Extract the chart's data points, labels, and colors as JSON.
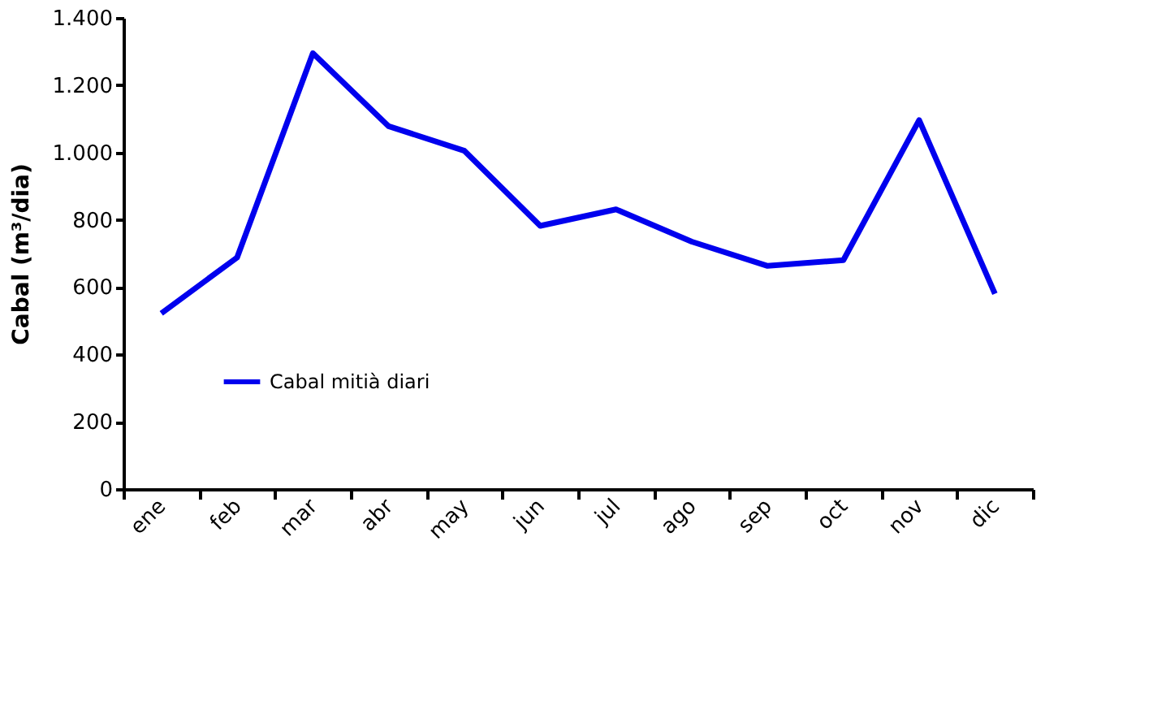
{
  "chart_data": {
    "type": "line",
    "ylabel": "Cabal (m³/dia)",
    "categories": [
      "ene",
      "feb",
      "mar",
      "abr",
      "may",
      "jun",
      "jul",
      "ago",
      "sep",
      "oct",
      "nov",
      "dic"
    ],
    "series": [
      {
        "name": "Cabal mitià diari",
        "color": "#0000ee",
        "values": [
          522,
          688,
          1295,
          1078,
          1005,
          782,
          831,
          735,
          663,
          680,
          1096,
          580
        ]
      }
    ],
    "ylim": [
      0,
      1400
    ],
    "yticks": [
      0,
      200,
      400,
      600,
      800,
      {
        "value": 1000,
        "label": "1.000"
      },
      {
        "value": 1200,
        "label": "1.200"
      },
      {
        "value": 1400,
        "label": "1.400"
      }
    ],
    "grid": false,
    "legend": "bottom left",
    "marker": "none",
    "line_style": "solid"
  }
}
